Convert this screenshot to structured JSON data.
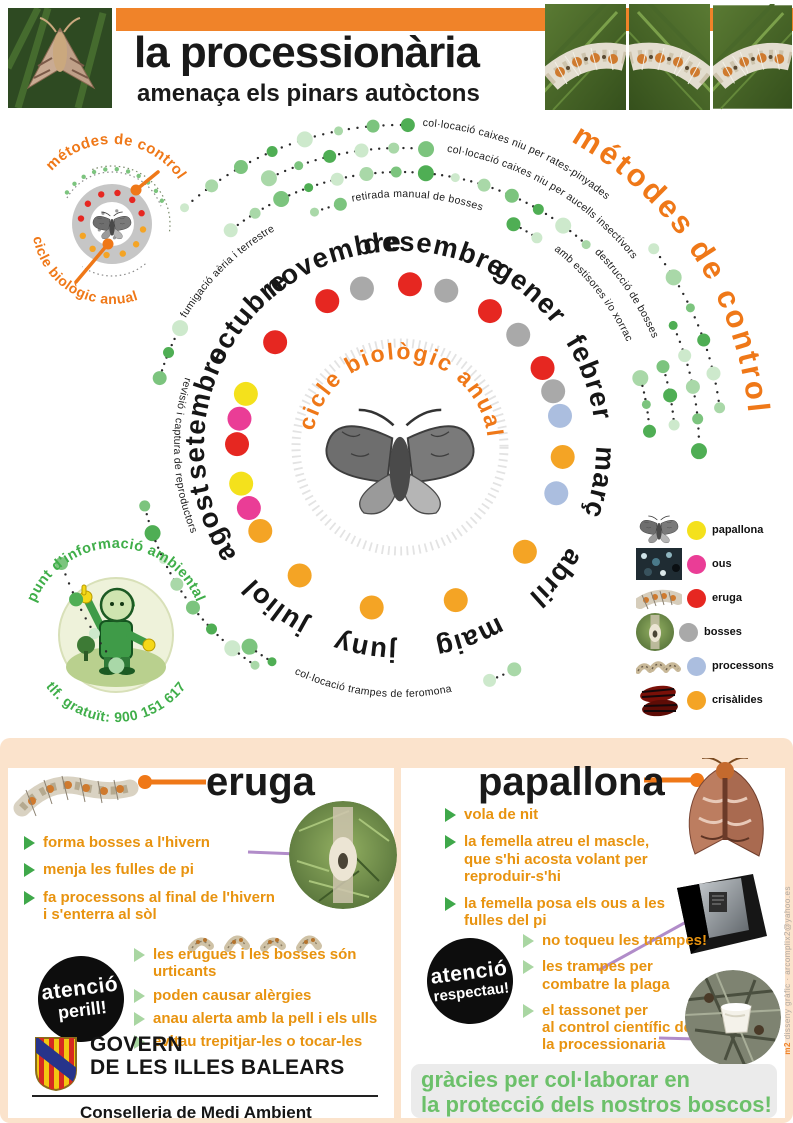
{
  "header": {
    "title": "la processionària",
    "subtitle": "amenaça els pinars autòctons"
  },
  "mini_diagram": {
    "top_label": "métodes de control",
    "bottom_label": "cicle biològic anual"
  },
  "cycle_diagram": {
    "center_title": "cicle biològic anual",
    "outer_title": "métodes de control",
    "stage_colors": {
      "papallona": "#f4e11c",
      "ous": "#ea3d96",
      "eruga": "#e62721",
      "bosses": "#a9a9a9",
      "processons": "#abbedf",
      "crisàlides": "#f4a425"
    },
    "months": [
      {
        "name": "gener",
        "angle": 40,
        "stages": [
          "eruga",
          "bosses"
        ]
      },
      {
        "name": "febrer",
        "angle": 70,
        "stages": [
          "eruga",
          "bosses",
          "processons"
        ]
      },
      {
        "name": "març",
        "angle": 100,
        "stages": [
          "crisàlides",
          "processons"
        ]
      },
      {
        "name": "abril",
        "angle": 130,
        "stages": [
          "crisàlides"
        ]
      },
      {
        "name": "maig",
        "angle": 160,
        "stages": [
          "crisàlides"
        ]
      },
      {
        "name": "juny",
        "angle": 190,
        "stages": [
          "crisàlides"
        ]
      },
      {
        "name": "juliol",
        "angle": 218,
        "stages": [
          "crisàlides"
        ]
      },
      {
        "name": "agost",
        "angle": 248,
        "stages": [
          "crisàlides",
          "ous",
          "papallona"
        ]
      },
      {
        "name": "setembre",
        "angle": 280,
        "stages": [
          "eruga",
          "ous",
          "papallona"
        ]
      },
      {
        "name": "octubre",
        "angle": 310,
        "stages": [
          "eruga"
        ]
      },
      {
        "name": "novembre",
        "angle": 340,
        "stages": [
          "eruga",
          "bosses"
        ]
      },
      {
        "name": "desembre",
        "angle": 10,
        "stages": [
          "eruga",
          "bosses"
        ]
      }
    ],
    "control_arcs": [
      {
        "r": 250,
        "dir": "cw",
        "segments": [
          {
            "dots": [
              286,
              299
            ]
          },
          {
            "label": "fumigació aèria i terrestre",
            "from": 301,
            "to": 338
          },
          {
            "dots": [
              340,
              347
            ]
          },
          {
            "label": "retirada manual de bosses",
            "from": 349,
            "to": 385
          },
          {
            "dots": [
              387,
              396
            ]
          },
          {
            "label": "amb estisores i/o xorrac",
            "from": 398,
            "to": 432
          },
          {
            "dots": [
              434,
              452
            ]
          }
        ]
      },
      {
        "r": 275,
        "dir": "cw",
        "segments": [
          {
            "dots": [
              322,
              403
            ]
          },
          {
            "label": "destrucció de bosses",
            "from": 405,
            "to": 431
          },
          {
            "dots": [
              433,
              450
            ]
          }
        ]
      },
      {
        "r": 299,
        "dir": "cw",
        "segments": [
          {
            "dots": [
              334,
              367
            ]
          },
          {
            "label": "col·locació caixes niu per aucells insectívors",
            "from": 369,
            "to": 424
          },
          {
            "dots": [
              426,
              452
            ]
          }
        ]
      },
      {
        "r": 322,
        "dir": "cw",
        "segments": [
          {
            "dots": [
              318,
              362
            ]
          },
          {
            "label": "col·locació caixes niu per rates-pinyades",
            "from": 364,
            "to": 410
          },
          {
            "dots": [
              412,
              448
            ]
          }
        ]
      },
      {
        "r": 250,
        "dir": "ccw",
        "segments": [
          {
            "dots": [
              217,
              207
            ]
          },
          {
            "label": "col·locació trampes de feromona",
            "from": 205,
            "to": 161
          },
          {
            "dots": [
              159,
              148
            ]
          }
        ]
      },
      {
        "r": 226,
        "dir": "ccw",
        "segments": [
          {
            "label": "revisió i captura de reproductors",
            "from": 288,
            "to": 234
          }
        ]
      },
      {
        "r": 262,
        "dir": "ccw",
        "segments": [
          {
            "dots": [
              257,
              213
            ]
          }
        ]
      },
      {
        "r": 358,
        "dir": "ccw",
        "segments": [
          {
            "dots": [
              251,
              231
            ]
          }
        ]
      }
    ]
  },
  "legend": {
    "items": [
      {
        "label": "papallona",
        "stage": "papallona",
        "thumb": "papallona"
      },
      {
        "label": "ous",
        "stage": "ous",
        "thumb": "ous"
      },
      {
        "label": "eruga",
        "stage": "eruga",
        "thumb": "eruga"
      },
      {
        "label": "bosses",
        "stage": "bosses",
        "thumb": "bosses"
      },
      {
        "label": "processons",
        "stage": "processons",
        "thumb": "processons"
      },
      {
        "label": "crisàlides",
        "stage": "crisàlides",
        "thumb": "crisalides"
      }
    ]
  },
  "info_point": {
    "title": "punt d'informació ambiental",
    "phone": "tlf. gratuït: 900 151 617"
  },
  "sections": {
    "eruga": {
      "title": "eruga",
      "bullets": [
        "forma bosses a l'hivern",
        "menja les fulles de pi",
        "fa processons al final de l'hivern\ni s'enterra al sòl"
      ]
    },
    "papallona": {
      "title": "papallona",
      "bullets": [
        "vola de nit",
        "la femella atreu el mascle,\nque s'hi acosta volant per\nreproduir-s'hi",
        "la femella posa els ous a les\nfulles del pi"
      ]
    },
    "danger": {
      "word1": "atenció",
      "word2": "perill!",
      "bullets": [
        "les erugues i les bosses són urticants",
        "poden causar alèrgies",
        "anau alerta amb la pell i els ulls",
        "evitau trepitjar-les o tocar-les"
      ]
    },
    "respect": {
      "word1": "atenció",
      "word2": "respectau!",
      "bullets": [
        "no toqueu les trampes!",
        "les trampes per\ncombatre la plaga",
        "el tassonet per\nal control científic de\nla processionaria"
      ]
    },
    "thanks": {
      "line1": "gràcies per col·laborar en",
      "line2": "la protecció dels nostros boscos!"
    }
  },
  "government": {
    "line1": "GOVERN",
    "line2": "DE LES ILLES BALEARS",
    "sub": "Conselleria de Medi Ambient"
  },
  "credit": {
    "prefix": "m2",
    "rest": " disseny gràfic · arcomplix2@yahoo.es"
  },
  "colors": {
    "accent_orange": "#f08329",
    "diagram_orange": "#ef7818",
    "peach": "#fbe3cc",
    "bullet_orange": "#e8930f",
    "green_text": "#3fae49",
    "purple_line": "#b18cc9",
    "thanks_green": "#6cc06a"
  }
}
